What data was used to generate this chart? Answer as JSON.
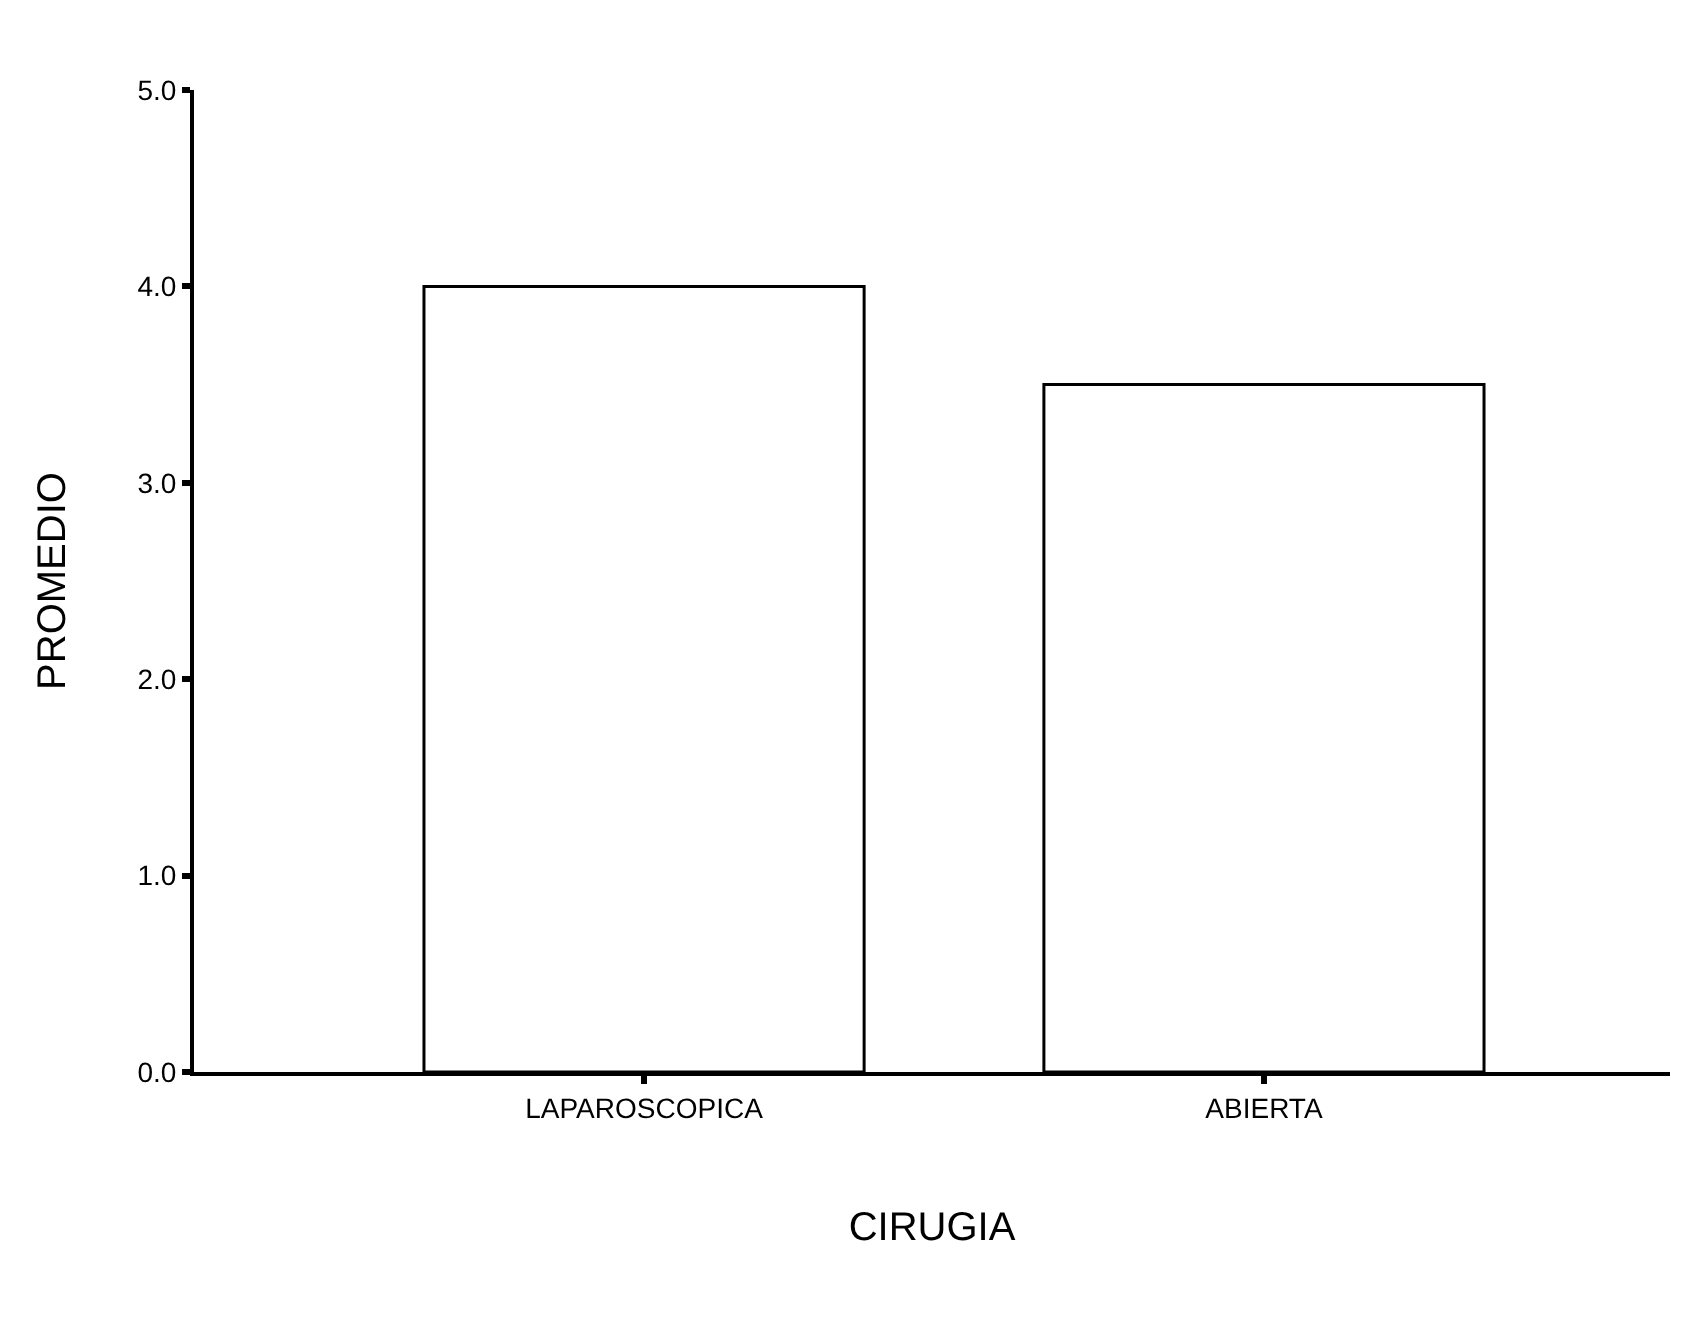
{
  "chart_data": {
    "type": "bar",
    "xlabel": "CIRUGIA",
    "ylabel": "PROMEDIO",
    "categories": [
      "LAPAROSCOPICA",
      "ABIERTA"
    ],
    "values": [
      4.0,
      3.5
    ],
    "color": "#ffffff",
    "ylim": [
      0,
      5
    ],
    "yticks": [
      {
        "value": 0,
        "label": "0.0"
      },
      {
        "value": 1,
        "label": "1.0"
      },
      {
        "value": 2,
        "label": "2.0"
      },
      {
        "value": 3,
        "label": "3.0"
      },
      {
        "value": 4,
        "label": "4.0"
      },
      {
        "value": 5,
        "label": "5.0"
      }
    ],
    "grid": false,
    "legend": false
  }
}
